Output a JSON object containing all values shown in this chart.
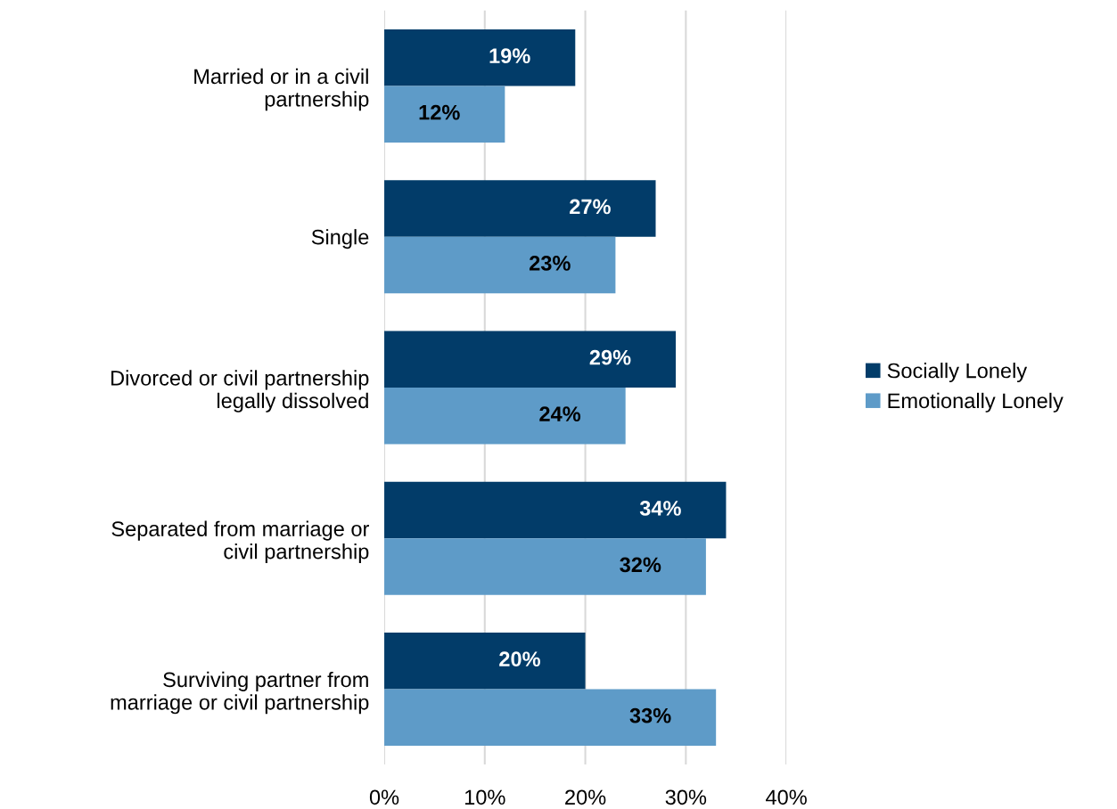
{
  "chart_data": {
    "type": "bar",
    "orientation": "horizontal",
    "categories": [
      "Married or in a civil\npartnership",
      "Single",
      "Divorced or civil partnership\nlegally dissolved",
      "Separated from marriage or\ncivil partnership",
      "Surviving partner from\nmarriage or civil partnership"
    ],
    "series": [
      {
        "name": "Socially Lonely",
        "color": "#023c69",
        "values": [
          19,
          27,
          29,
          34,
          20
        ],
        "value_labels": [
          "19%",
          "27%",
          "29%",
          "34%",
          "20%"
        ]
      },
      {
        "name": "Emotionally Lonely",
        "color": "#5e9bc8",
        "values": [
          12,
          23,
          24,
          32,
          33
        ],
        "value_labels": [
          "12%",
          "23%",
          "24%",
          "32%",
          "33%"
        ]
      }
    ],
    "xlim": [
      0,
      40
    ],
    "xticks": [
      {
        "value": 0,
        "label": "0%"
      },
      {
        "value": 10,
        "label": "10%"
      },
      {
        "value": 20,
        "label": "20%"
      },
      {
        "value": 30,
        "label": "30%"
      },
      {
        "value": 40,
        "label": "40%"
      }
    ],
    "grid": "x",
    "legend": "right"
  }
}
